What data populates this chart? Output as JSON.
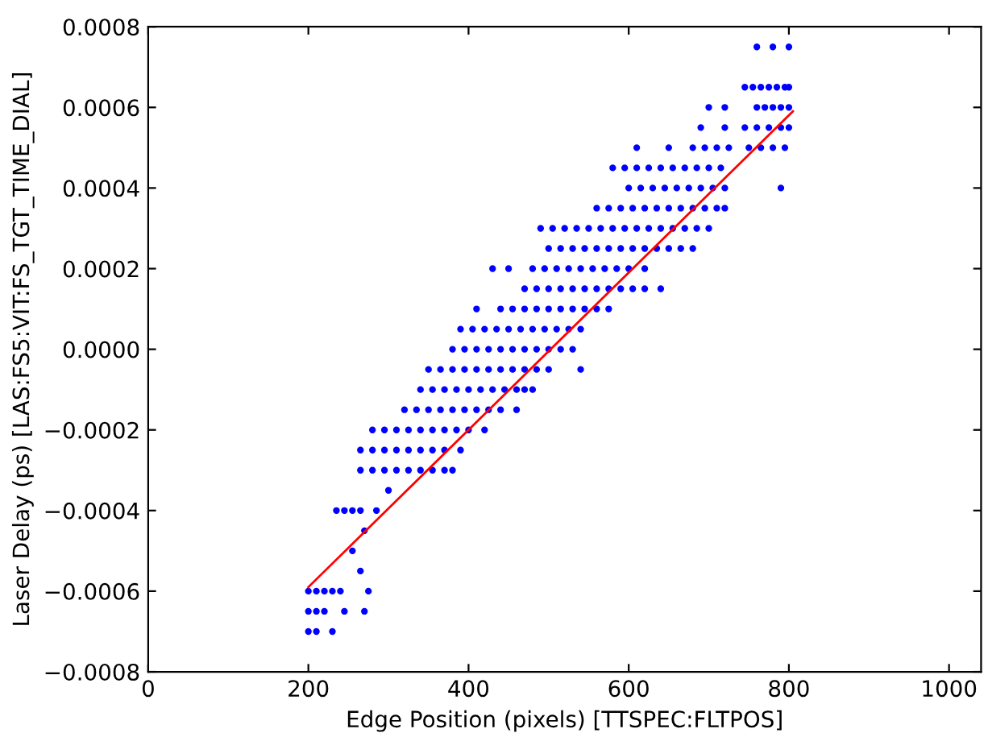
{
  "chart_data": {
    "type": "scatter",
    "xlabel": "Edge Position (pixels) [TTSPEC:FLTPOS]",
    "ylabel": "Laser Delay (ps) [LAS:FS5:VIT:FS_TGT_TIME_DIAL]",
    "xlim": [
      0,
      1040
    ],
    "xticks": [
      0,
      200,
      400,
      600,
      800,
      1000
    ],
    "ylim": [
      -0.0008,
      0.0008
    ],
    "yticks": [
      {
        "value": -0.0008,
        "label": "−0.0008"
      },
      {
        "value": -0.0006,
        "label": "−0.0006"
      },
      {
        "value": -0.0004,
        "label": "−0.0004"
      },
      {
        "value": -0.0002,
        "label": "−0.0002"
      },
      {
        "value": 0,
        "label": "0.0000"
      },
      {
        "value": 0.0002,
        "label": "0.0002"
      },
      {
        "value": 0.0004,
        "label": "0.0004"
      },
      {
        "value": 0.0006,
        "label": "0.0006"
      },
      {
        "value": 0.0008,
        "label": "0.0008"
      }
    ],
    "grid": false,
    "legend": false,
    "marker": "circle",
    "series": [
      {
        "color": "#0000ff",
        "x": [
          760,
          780,
          800
        ],
        "values": [
          0.00075,
          0.00075,
          0.00075
        ]
      },
      {
        "color": "#0000ff",
        "x": [
          745,
          755,
          765,
          775,
          785,
          795,
          800
        ],
        "values": [
          0.00065,
          0.00065,
          0.00065,
          0.00065,
          0.00065,
          0.00065,
          0.00065
        ]
      },
      {
        "color": "#0000ff",
        "x": [
          700,
          720,
          760,
          770,
          780,
          790,
          800
        ],
        "values": [
          0.0006,
          0.0006,
          0.0006,
          0.0006,
          0.0006,
          0.0006,
          0.0006
        ]
      },
      {
        "color": "#0000ff",
        "x": [
          690,
          720,
          745,
          760,
          775,
          790,
          800
        ],
        "values": [
          0.00055,
          0.00055,
          0.00055,
          0.00055,
          0.00055,
          0.00055,
          0.00055
        ]
      },
      {
        "color": "#0000ff",
        "x": [
          610,
          650,
          680,
          695,
          710,
          725,
          750,
          765,
          780,
          795
        ],
        "values": [
          0.0005,
          0.0005,
          0.0005,
          0.0005,
          0.0005,
          0.0005,
          0.0005,
          0.0005,
          0.0005,
          0.0005
        ]
      },
      {
        "color": "#0000ff",
        "x": [
          580,
          595,
          610,
          625,
          640,
          655,
          670,
          685,
          700,
          715
        ],
        "values": [
          0.00045,
          0.00045,
          0.00045,
          0.00045,
          0.00045,
          0.00045,
          0.00045,
          0.00045,
          0.00045,
          0.00045
        ]
      },
      {
        "color": "#0000ff",
        "x": [
          600,
          615,
          630,
          645,
          660,
          675,
          690,
          705,
          720,
          790
        ],
        "values": [
          0.0004,
          0.0004,
          0.0004,
          0.0004,
          0.0004,
          0.0004,
          0.0004,
          0.0004,
          0.0004,
          0.0004
        ]
      },
      {
        "color": "#0000ff",
        "x": [
          560,
          575,
          590,
          605,
          620,
          635,
          650,
          665,
          680,
          695,
          710,
          720
        ],
        "values": [
          0.00035,
          0.00035,
          0.00035,
          0.00035,
          0.00035,
          0.00035,
          0.00035,
          0.00035,
          0.00035,
          0.00035,
          0.00035,
          0.00035
        ]
      },
      {
        "color": "#0000ff",
        "x": [
          490,
          505,
          520,
          535,
          550,
          565,
          580,
          595,
          610,
          625,
          640,
          655,
          670,
          685,
          700
        ],
        "values": [
          0.0003,
          0.0003,
          0.0003,
          0.0003,
          0.0003,
          0.0003,
          0.0003,
          0.0003,
          0.0003,
          0.0003,
          0.0003,
          0.0003,
          0.0003,
          0.0003,
          0.0003
        ]
      },
      {
        "color": "#0000ff",
        "x": [
          500,
          515,
          530,
          545,
          560,
          575,
          590,
          605,
          620,
          635,
          650,
          665,
          680
        ],
        "values": [
          0.00025,
          0.00025,
          0.00025,
          0.00025,
          0.00025,
          0.00025,
          0.00025,
          0.00025,
          0.00025,
          0.00025,
          0.00025,
          0.00025,
          0.00025
        ]
      },
      {
        "color": "#0000ff",
        "x": [
          430,
          450,
          480,
          495,
          510,
          525,
          540,
          555,
          570,
          585,
          600,
          620
        ],
        "values": [
          0.0002,
          0.0002,
          0.0002,
          0.0002,
          0.0002,
          0.0002,
          0.0002,
          0.0002,
          0.0002,
          0.0002,
          0.0002,
          0.0002
        ]
      },
      {
        "color": "#0000ff",
        "x": [
          470,
          485,
          500,
          515,
          530,
          545,
          560,
          575,
          590,
          605,
          620,
          640
        ],
        "values": [
          0.00015,
          0.00015,
          0.00015,
          0.00015,
          0.00015,
          0.00015,
          0.00015,
          0.00015,
          0.00015,
          0.00015,
          0.00015,
          0.00015
        ]
      },
      {
        "color": "#0000ff",
        "x": [
          410,
          440,
          455,
          470,
          485,
          500,
          515,
          530,
          545,
          560,
          575
        ],
        "values": [
          0.0001,
          0.0001,
          0.0001,
          0.0001,
          0.0001,
          0.0001,
          0.0001,
          0.0001,
          0.0001,
          0.0001,
          0.0001
        ]
      },
      {
        "color": "#0000ff",
        "x": [
          390,
          405,
          420,
          435,
          450,
          465,
          480,
          495,
          510,
          525,
          540
        ],
        "values": [
          5e-05,
          5e-05,
          5e-05,
          5e-05,
          5e-05,
          5e-05,
          5e-05,
          5e-05,
          5e-05,
          5e-05,
          5e-05
        ]
      },
      {
        "color": "#0000ff",
        "x": [
          380,
          395,
          410,
          425,
          440,
          455,
          470,
          485,
          500,
          515,
          530
        ],
        "values": [
          0,
          0,
          0,
          0,
          0,
          0,
          0,
          0,
          0,
          0,
          0
        ]
      },
      {
        "color": "#0000ff",
        "x": [
          350,
          365,
          380,
          395,
          410,
          425,
          440,
          455,
          470,
          485,
          500,
          540
        ],
        "values": [
          -5e-05,
          -5e-05,
          -5e-05,
          -5e-05,
          -5e-05,
          -5e-05,
          -5e-05,
          -5e-05,
          -5e-05,
          -5e-05,
          -5e-05,
          -5e-05
        ]
      },
      {
        "color": "#0000ff",
        "x": [
          340,
          355,
          370,
          385,
          400,
          415,
          430,
          445,
          460,
          470,
          480
        ],
        "values": [
          -0.0001,
          -0.0001,
          -0.0001,
          -0.0001,
          -0.0001,
          -0.0001,
          -0.0001,
          -0.0001,
          -0.0001,
          -0.0001,
          -0.0001
        ]
      },
      {
        "color": "#0000ff",
        "x": [
          320,
          335,
          350,
          365,
          380,
          395,
          410,
          425,
          440,
          460
        ],
        "values": [
          -0.00015,
          -0.00015,
          -0.00015,
          -0.00015,
          -0.00015,
          -0.00015,
          -0.00015,
          -0.00015,
          -0.00015,
          -0.00015
        ]
      },
      {
        "color": "#0000ff",
        "x": [
          280,
          295,
          310,
          325,
          340,
          355,
          370,
          385,
          400,
          420
        ],
        "values": [
          -0.0002,
          -0.0002,
          -0.0002,
          -0.0002,
          -0.0002,
          -0.0002,
          -0.0002,
          -0.0002,
          -0.0002,
          -0.0002
        ]
      },
      {
        "color": "#0000ff",
        "x": [
          265,
          280,
          295,
          310,
          325,
          340,
          355,
          370,
          390
        ],
        "values": [
          -0.00025,
          -0.00025,
          -0.00025,
          -0.00025,
          -0.00025,
          -0.00025,
          -0.00025,
          -0.00025,
          -0.00025
        ]
      },
      {
        "color": "#0000ff",
        "x": [
          265,
          280,
          295,
          310,
          325,
          340,
          355,
          370,
          380
        ],
        "values": [
          -0.0003,
          -0.0003,
          -0.0003,
          -0.0003,
          -0.0003,
          -0.0003,
          -0.0003,
          -0.0003,
          -0.0003
        ]
      },
      {
        "color": "#0000ff",
        "x": [
          300
        ],
        "values": [
          -0.00035
        ]
      },
      {
        "color": "#0000ff",
        "x": [
          235,
          245,
          255,
          265,
          285
        ],
        "values": [
          -0.0004,
          -0.0004,
          -0.0004,
          -0.0004,
          -0.0004
        ]
      },
      {
        "color": "#0000ff",
        "x": [
          270
        ],
        "values": [
          -0.00045
        ]
      },
      {
        "color": "#0000ff",
        "x": [
          255
        ],
        "values": [
          -0.0005
        ]
      },
      {
        "color": "#0000ff",
        "x": [
          265
        ],
        "values": [
          -0.00055
        ]
      },
      {
        "color": "#0000ff",
        "x": [
          200,
          210,
          220,
          230,
          240,
          275
        ],
        "values": [
          -0.0006,
          -0.0006,
          -0.0006,
          -0.0006,
          -0.0006,
          -0.0006
        ]
      },
      {
        "color": "#0000ff",
        "x": [
          200,
          210,
          220,
          245,
          270
        ],
        "values": [
          -0.00065,
          -0.00065,
          -0.00065,
          -0.00065,
          -0.00065
        ]
      },
      {
        "color": "#0000ff",
        "x": [
          200,
          210,
          230
        ],
        "values": [
          -0.0007,
          -0.0007,
          -0.0007
        ]
      },
      {
        "type": "line",
        "marker": "none",
        "color": "#ff0000",
        "x": [
          200,
          805
        ],
        "values": [
          -0.00059,
          0.00059
        ]
      }
    ]
  }
}
